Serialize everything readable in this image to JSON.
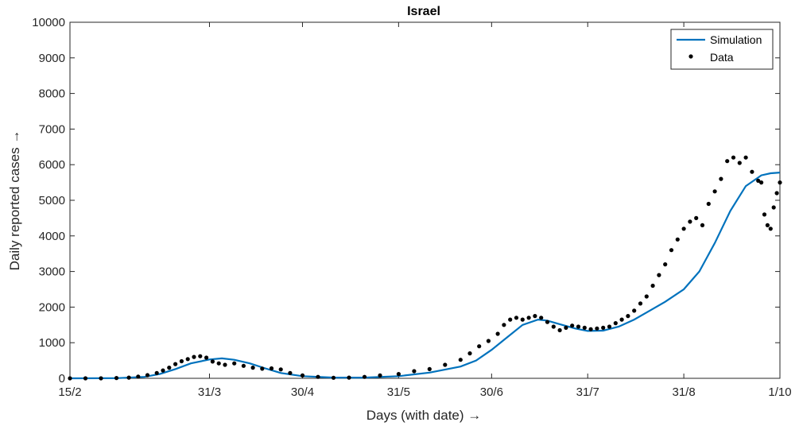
{
  "chart_data": {
    "type": "line",
    "title": "Israel",
    "xlabel": "Days (with date) →",
    "ylabel": "Daily reported cases →",
    "xlim": [
      "15/2",
      "1/10"
    ],
    "ylim": [
      0,
      10000
    ],
    "x_ticks": [
      "15/2",
      "31/3",
      "30/4",
      "31/5",
      "30/6",
      "31/7",
      "31/8",
      "1/10"
    ],
    "y_ticks": [
      "0",
      "1000",
      "2000",
      "3000",
      "4000",
      "5000",
      "6000",
      "7000",
      "8000",
      "9000",
      "10000"
    ],
    "grid": false,
    "legend_position": "top-right",
    "colors": {
      "simulation": "#0072BD",
      "data": "#000000",
      "axes": "#262626"
    },
    "series": [
      {
        "name": "Simulation",
        "style": "line",
        "x": [
          "15/2",
          "1/3",
          "10/3",
          "15/3",
          "20/3",
          "25/3",
          "31/3",
          "4/4",
          "8/4",
          "13/4",
          "18/4",
          "23/4",
          "30/4",
          "10/5",
          "20/5",
          "31/5",
          "10/6",
          "20/6",
          "25/6",
          "30/6",
          "5/7",
          "10/7",
          "15/7",
          "18/7",
          "22/7",
          "27/7",
          "31/7",
          "5/8",
          "10/8",
          "15/8",
          "20/8",
          "25/8",
          "31/8",
          "5/9",
          "10/9",
          "15/9",
          "20/9",
          "25/9",
          "28/9",
          "1/10"
        ],
        "values": [
          0,
          5,
          40,
          120,
          260,
          420,
          530,
          560,
          520,
          420,
          280,
          150,
          60,
          20,
          20,
          60,
          160,
          330,
          500,
          800,
          1150,
          1500,
          1650,
          1620,
          1520,
          1400,
          1330,
          1340,
          1450,
          1650,
          1900,
          2150,
          2500,
          3000,
          3800,
          4700,
          5400,
          5700,
          5760,
          5780
        ]
      },
      {
        "name": "Data",
        "style": "points",
        "x": [
          "15/2",
          "20/2",
          "25/2",
          "1/3",
          "5/3",
          "8/3",
          "11/3",
          "14/3",
          "16/3",
          "18/3",
          "20/3",
          "22/3",
          "24/3",
          "26/3",
          "28/3",
          "30/3",
          "1/4",
          "3/4",
          "5/4",
          "8/4",
          "11/4",
          "14/4",
          "17/4",
          "20/4",
          "23/4",
          "26/4",
          "30/4",
          "5/5",
          "10/5",
          "15/5",
          "20/5",
          "25/5",
          "31/5",
          "5/6",
          "10/6",
          "15/6",
          "20/6",
          "23/6",
          "26/6",
          "29/6",
          "2/7",
          "4/7",
          "6/7",
          "8/7",
          "10/7",
          "12/7",
          "14/7",
          "16/7",
          "18/7",
          "20/7",
          "22/7",
          "24/7",
          "26/7",
          "28/7",
          "30/7",
          "1/8",
          "3/8",
          "5/8",
          "7/8",
          "9/8",
          "11/8",
          "13/8",
          "15/8",
          "17/8",
          "19/8",
          "21/8",
          "23/8",
          "25/8",
          "27/8",
          "29/8",
          "31/8",
          "2/9",
          "4/9",
          "6/9",
          "8/9",
          "10/9",
          "12/9",
          "14/9",
          "16/9",
          "18/9",
          "20/9",
          "22/9",
          "24/9",
          "25/9",
          "26/9",
          "27/9",
          "28/9",
          "29/9",
          "30/9",
          "1/10"
        ],
        "values": [
          0,
          0,
          0,
          10,
          20,
          50,
          90,
          150,
          220,
          300,
          400,
          480,
          540,
          600,
          620,
          580,
          470,
          420,
          380,
          420,
          350,
          300,
          270,
          280,
          250,
          150,
          80,
          40,
          15,
          20,
          40,
          80,
          120,
          200,
          260,
          380,
          520,
          700,
          900,
          1050,
          1250,
          1500,
          1650,
          1700,
          1650,
          1700,
          1750,
          1700,
          1580,
          1450,
          1350,
          1420,
          1480,
          1450,
          1420,
          1380,
          1400,
          1420,
          1450,
          1550,
          1650,
          1750,
          1900,
          2100,
          2300,
          2600,
          2900,
          3200,
          3600,
          3900,
          4200,
          4400,
          4500,
          4300,
          4900,
          5250,
          5600,
          6100,
          6200,
          6050,
          6200,
          5800,
          5550,
          5500,
          4600,
          4300,
          4200,
          4800,
          5200,
          5500
        ]
      }
    ]
  }
}
